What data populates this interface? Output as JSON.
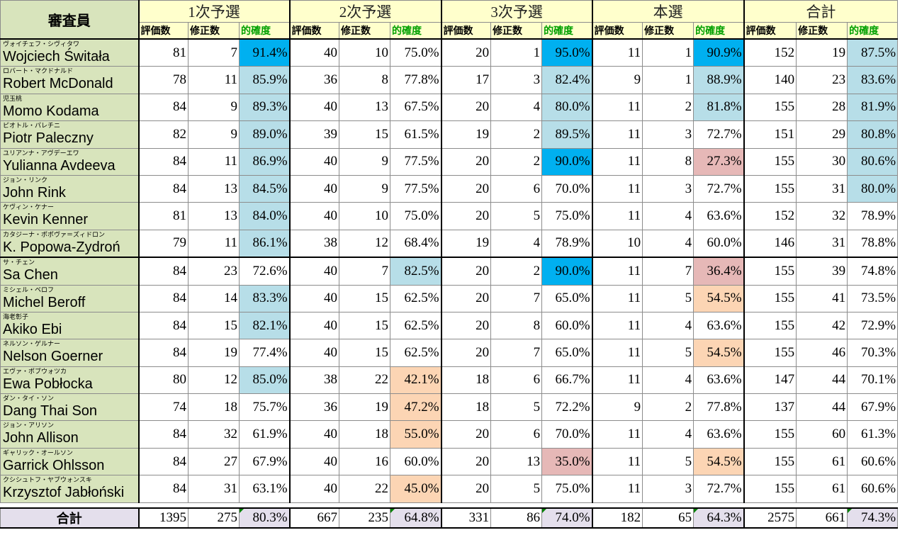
{
  "headers": {
    "juror": "審査員",
    "groups": [
      "1次予選",
      "2次予選",
      "3次予選",
      "本選",
      "合計"
    ],
    "sub": [
      "評価数",
      "修正数",
      "的確度"
    ]
  },
  "colors": {
    "high": "#00b0f0",
    "good": "#b7dee8",
    "low": "#e6b8b7",
    "mid_low": "#fcd5b4",
    "name_bg": "#d8e4bc",
    "header_bg": "#ffffcc",
    "total_bg": "#e4dfec"
  },
  "rows": [
    {
      "kana": "ヴォイチェフ・シヴィタワ",
      "name": "Wojciech Świtała",
      "r1": [
        "81",
        "7",
        "91.4%"
      ],
      "r2": [
        "40",
        "10",
        "75.0%"
      ],
      "r3": [
        "20",
        "1",
        "95.0%"
      ],
      "f": [
        "11",
        "1",
        "90.9%"
      ],
      "t": [
        "152",
        "19",
        "87.5%"
      ],
      "hl": [
        "high",
        "",
        "high",
        "high",
        "good"
      ]
    },
    {
      "kana": "ロバート・マクドナルド",
      "name": "Robert McDonald",
      "r1": [
        "78",
        "11",
        "85.9%"
      ],
      "r2": [
        "36",
        "8",
        "77.8%"
      ],
      "r3": [
        "17",
        "3",
        "82.4%"
      ],
      "f": [
        "9",
        "1",
        "88.9%"
      ],
      "t": [
        "140",
        "23",
        "83.6%"
      ],
      "hl": [
        "good",
        "",
        "good",
        "good",
        "good"
      ]
    },
    {
      "kana": "児玉桃",
      "name": "Momo Kodama",
      "r1": [
        "84",
        "9",
        "89.3%"
      ],
      "r2": [
        "40",
        "13",
        "67.5%"
      ],
      "r3": [
        "20",
        "4",
        "80.0%"
      ],
      "f": [
        "11",
        "2",
        "81.8%"
      ],
      "t": [
        "155",
        "28",
        "81.9%"
      ],
      "hl": [
        "good",
        "",
        "good",
        "good",
        "good"
      ]
    },
    {
      "kana": "ピオトル・パレチニ",
      "name": "Piotr Paleczny",
      "r1": [
        "82",
        "9",
        "89.0%"
      ],
      "r2": [
        "39",
        "15",
        "61.5%"
      ],
      "r3": [
        "19",
        "2",
        "89.5%"
      ],
      "f": [
        "11",
        "3",
        "72.7%"
      ],
      "t": [
        "151",
        "29",
        "80.8%"
      ],
      "hl": [
        "good",
        "",
        "good",
        "",
        "good"
      ]
    },
    {
      "kana": "ユリアンナ・アヴデーエワ",
      "name": "Yulianna Avdeeva",
      "r1": [
        "84",
        "11",
        "86.9%"
      ],
      "r2": [
        "40",
        "9",
        "77.5%"
      ],
      "r3": [
        "20",
        "2",
        "90.0%"
      ],
      "f": [
        "11",
        "8",
        "27.3%"
      ],
      "t": [
        "155",
        "30",
        "80.6%"
      ],
      "hl": [
        "good",
        "",
        "high",
        "low",
        "good"
      ]
    },
    {
      "kana": "ジョン・リンク",
      "name": "John Rink",
      "r1": [
        "84",
        "13",
        "84.5%"
      ],
      "r2": [
        "40",
        "9",
        "77.5%"
      ],
      "r3": [
        "20",
        "6",
        "70.0%"
      ],
      "f": [
        "11",
        "3",
        "72.7%"
      ],
      "t": [
        "155",
        "31",
        "80.0%"
      ],
      "hl": [
        "good",
        "",
        "",
        "",
        "good"
      ]
    },
    {
      "kana": "ケヴィン・ケナー",
      "name": "Kevin Kenner",
      "r1": [
        "81",
        "13",
        "84.0%"
      ],
      "r2": [
        "40",
        "10",
        "75.0%"
      ],
      "r3": [
        "20",
        "5",
        "75.0%"
      ],
      "f": [
        "11",
        "4",
        "63.6%"
      ],
      "t": [
        "152",
        "32",
        "78.9%"
      ],
      "hl": [
        "good",
        "",
        "",
        "",
        ""
      ]
    },
    {
      "kana": "カタジーナ・ポポヴァ＝ズィドロン",
      "name": "K. Popowa-Zydroń",
      "r1": [
        "79",
        "11",
        "86.1%"
      ],
      "r2": [
        "38",
        "12",
        "68.4%"
      ],
      "r3": [
        "19",
        "4",
        "78.9%"
      ],
      "f": [
        "10",
        "4",
        "60.0%"
      ],
      "t": [
        "146",
        "31",
        "78.8%"
      ],
      "hl": [
        "good",
        "",
        "",
        "",
        ""
      ]
    },
    {
      "kana": "サ・チェン",
      "name": "Sa Chen",
      "r1": [
        "84",
        "23",
        "72.6%"
      ],
      "r2": [
        "40",
        "7",
        "82.5%"
      ],
      "r3": [
        "20",
        "2",
        "90.0%"
      ],
      "f": [
        "11",
        "7",
        "36.4%"
      ],
      "t": [
        "155",
        "39",
        "74.8%"
      ],
      "hl": [
        "",
        "good",
        "high",
        "low",
        ""
      ]
    },
    {
      "kana": "ミシェル・ベロフ",
      "name": "Michel Beroff",
      "r1": [
        "84",
        "14",
        "83.3%"
      ],
      "r2": [
        "40",
        "15",
        "62.5%"
      ],
      "r3": [
        "20",
        "7",
        "65.0%"
      ],
      "f": [
        "11",
        "5",
        "54.5%"
      ],
      "t": [
        "155",
        "41",
        "73.5%"
      ],
      "hl": [
        "good",
        "",
        "",
        "mid_low",
        ""
      ]
    },
    {
      "kana": "海老彰子",
      "name": "Akiko Ebi",
      "r1": [
        "84",
        "15",
        "82.1%"
      ],
      "r2": [
        "40",
        "15",
        "62.5%"
      ],
      "r3": [
        "20",
        "8",
        "60.0%"
      ],
      "f": [
        "11",
        "4",
        "63.6%"
      ],
      "t": [
        "155",
        "42",
        "72.9%"
      ],
      "hl": [
        "good",
        "",
        "",
        "",
        ""
      ]
    },
    {
      "kana": "ネルソン・ゲルナー",
      "name": "Nelson Goerner",
      "r1": [
        "84",
        "19",
        "77.4%"
      ],
      "r2": [
        "40",
        "15",
        "62.5%"
      ],
      "r3": [
        "20",
        "7",
        "65.0%"
      ],
      "f": [
        "11",
        "5",
        "54.5%"
      ],
      "t": [
        "155",
        "46",
        "70.3%"
      ],
      "hl": [
        "",
        "",
        "",
        "mid_low",
        ""
      ]
    },
    {
      "kana": "エヴァ・ポブウォツカ",
      "name": "Ewa Pobłocka",
      "r1": [
        "80",
        "12",
        "85.0%"
      ],
      "r2": [
        "38",
        "22",
        "42.1%"
      ],
      "r3": [
        "18",
        "6",
        "66.7%"
      ],
      "f": [
        "11",
        "4",
        "63.6%"
      ],
      "t": [
        "147",
        "44",
        "70.1%"
      ],
      "hl": [
        "good",
        "mid_low",
        "",
        "",
        ""
      ]
    },
    {
      "kana": "ダン・タイ・ソン",
      "name": "Dang Thai Son",
      "r1": [
        "74",
        "18",
        "75.7%"
      ],
      "r2": [
        "36",
        "19",
        "47.2%"
      ],
      "r3": [
        "18",
        "5",
        "72.2%"
      ],
      "f": [
        "9",
        "2",
        "77.8%"
      ],
      "t": [
        "137",
        "44",
        "67.9%"
      ],
      "hl": [
        "",
        "mid_low",
        "",
        "",
        ""
      ]
    },
    {
      "kana": "ジョン・アリソン",
      "name": "John Allison",
      "r1": [
        "84",
        "32",
        "61.9%"
      ],
      "r2": [
        "40",
        "18",
        "55.0%"
      ],
      "r3": [
        "20",
        "6",
        "70.0%"
      ],
      "f": [
        "11",
        "4",
        "63.6%"
      ],
      "t": [
        "155",
        "60",
        "61.3%"
      ],
      "hl": [
        "",
        "mid_low",
        "",
        "",
        ""
      ]
    },
    {
      "kana": "ギャリック・オールソン",
      "name": "Garrick Ohlsson",
      "r1": [
        "84",
        "27",
        "67.9%"
      ],
      "r2": [
        "40",
        "16",
        "60.0%"
      ],
      "r3": [
        "20",
        "13",
        "35.0%"
      ],
      "f": [
        "11",
        "5",
        "54.5%"
      ],
      "t": [
        "155",
        "61",
        "60.6%"
      ],
      "hl": [
        "",
        "",
        "low",
        "mid_low",
        ""
      ]
    },
    {
      "kana": "クシシュトフ・ヤブウォンスキ",
      "name": "Krzysztof Jabłoński",
      "r1": [
        "84",
        "31",
        "63.1%"
      ],
      "r2": [
        "40",
        "22",
        "45.0%"
      ],
      "r3": [
        "20",
        "5",
        "75.0%"
      ],
      "f": [
        "11",
        "3",
        "72.7%"
      ],
      "t": [
        "155",
        "61",
        "60.6%"
      ],
      "hl": [
        "",
        "mid_low",
        "",
        "",
        ""
      ]
    }
  ],
  "total": {
    "label": "合計",
    "r1": [
      "1395",
      "275",
      "80.3%"
    ],
    "r2": [
      "667",
      "235",
      "64.8%"
    ],
    "r3": [
      "331",
      "86",
      "74.0%"
    ],
    "f": [
      "182",
      "65",
      "64.3%"
    ],
    "t": [
      "2575",
      "661",
      "74.3%"
    ]
  }
}
